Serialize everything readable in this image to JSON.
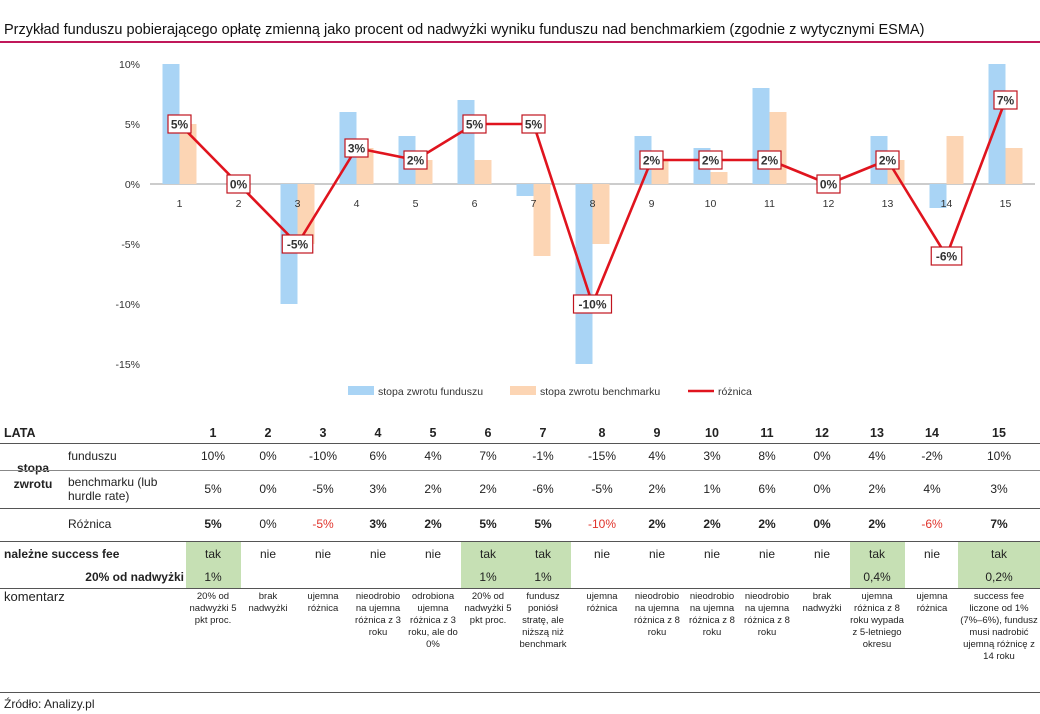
{
  "title": "Przykład funduszu pobierającego opłatę zmienną jako procent od nadwyżki wyniku funduszu nad benchmarkiem (zgodnie z wytycznymi ESMA)",
  "chart_data": {
    "type": "bar",
    "categories": [
      "1",
      "2",
      "3",
      "4",
      "5",
      "6",
      "7",
      "8",
      "9",
      "10",
      "11",
      "12",
      "13",
      "14",
      "15"
    ],
    "series": [
      {
        "name": "stopa zwrotu funduszu",
        "kind": "bar",
        "color": "#a9d4f5",
        "values": [
          10,
          0,
          -10,
          6,
          4,
          7,
          -1,
          -15,
          4,
          3,
          8,
          0,
          4,
          -2,
          10
        ]
      },
      {
        "name": "stopa zwrotu benchmarku",
        "kind": "bar",
        "color": "#fcd5b4",
        "values": [
          5,
          0,
          -5,
          3,
          2,
          2,
          -6,
          -5,
          2,
          1,
          6,
          0,
          2,
          4,
          3
        ]
      },
      {
        "name": "różnica",
        "kind": "line",
        "color": "#e0141e",
        "values": [
          5,
          0,
          -5,
          3,
          2,
          5,
          5,
          -10,
          2,
          2,
          2,
          0,
          2,
          -6,
          7
        ]
      }
    ],
    "data_labels": [
      "5%",
      "0%",
      "-5%",
      "3%",
      "2%",
      "5%",
      "5%",
      "-10%",
      "2%",
      "2%",
      "2%",
      "0%",
      "2%",
      "-6%",
      "7%"
    ],
    "y_ticks": [
      "10%",
      "5%",
      "0%",
      "-5%",
      "-10%",
      "-15%"
    ],
    "y_tick_values": [
      10,
      5,
      0,
      -5,
      -10,
      -15
    ],
    "ylim": [
      -15,
      10
    ],
    "xlabel": "",
    "ylabel": "",
    "legend_position": "bottom"
  },
  "table": {
    "lata_label": "LATA",
    "years": [
      "1",
      "2",
      "3",
      "4",
      "5",
      "6",
      "7",
      "8",
      "9",
      "10",
      "11",
      "12",
      "13",
      "14",
      "15"
    ],
    "stopa_label": "stopa zwrotu",
    "funduszu_label": "funduszu",
    "funduszu": [
      "10%",
      "0%",
      "-10%",
      "6%",
      "4%",
      "7%",
      "-1%",
      "-15%",
      "4%",
      "3%",
      "8%",
      "0%",
      "4%",
      "-2%",
      "10%"
    ],
    "benchmark_label": "benchmarku (lub hurdle rate)",
    "benchmark": [
      "5%",
      "0%",
      "-5%",
      "3%",
      "2%",
      "2%",
      "-6%",
      "-5%",
      "2%",
      "1%",
      "6%",
      "0%",
      "2%",
      "4%",
      "3%"
    ],
    "roznica_label": "Różnica",
    "roznica": [
      "5%",
      "0%",
      "-5%",
      "3%",
      "2%",
      "5%",
      "5%",
      "-10%",
      "2%",
      "2%",
      "2%",
      "0%",
      "2%",
      "-6%",
      "7%"
    ],
    "success_label": "należne success fee",
    "success": [
      "tak",
      "nie",
      "nie",
      "nie",
      "nie",
      "tak",
      "tak",
      "nie",
      "nie",
      "nie",
      "nie",
      "nie",
      "tak",
      "nie",
      "tak"
    ],
    "fee_label": "20% od nadwyżki",
    "fee": [
      "1%",
      "",
      "",
      "",
      "",
      "1%",
      "1%",
      "",
      "",
      "",
      "",
      "",
      "0,4%",
      "",
      "0,2%"
    ],
    "comment_label": "komentarz",
    "comments": [
      "20% od nadwyżki 5 pkt proc.",
      "brak nadwyżki",
      "ujemna różnica",
      "nieodrobio na ujemna różnica z 3 roku",
      "odrobiona ujemna różnica z 3 roku, ale do 0%",
      "20% od nadwyżki 5 pkt proc.",
      "fundusz poniósł stratę, ale niższą niż benchmark",
      "ujemna różnica",
      "nieodrobio na ujemna różnica z 8 roku",
      "nieodrobio na ujemna różnica z 8 roku",
      "nieodrobio na ujemna różnica z 8 roku",
      "brak nadwyżki",
      "ujemna różnica z 8 roku wypada z 5-letniego okresu",
      "ujemna różnica",
      "success fee liczone od 1% (7%–6%), fundusz musi nadrobić ujemną różnicę z 14 roku"
    ]
  },
  "source": "Źródło: Analizy.pl",
  "colors": {
    "accent": "#c0185a",
    "positive_bg": "#c6e0b4",
    "negative_text": "#e0332b"
  }
}
